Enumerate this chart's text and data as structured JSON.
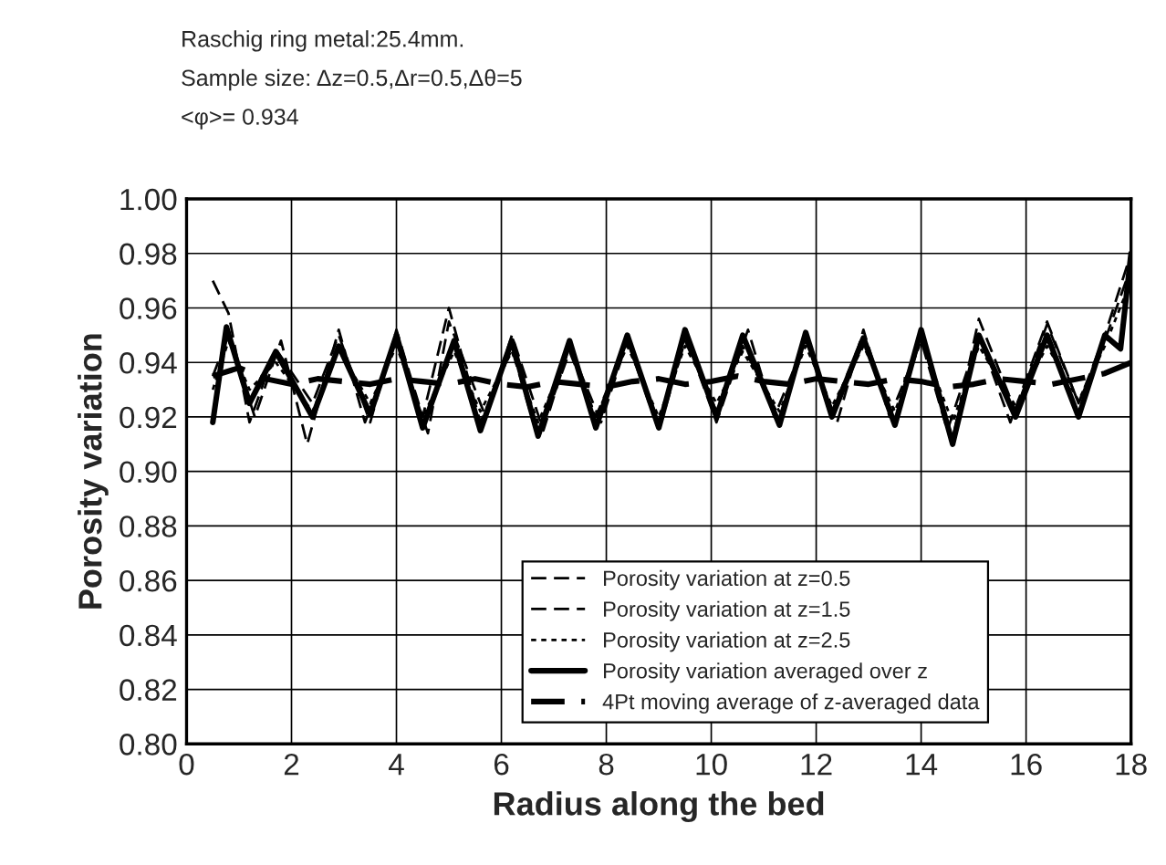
{
  "chart_data": {
    "type": "line",
    "title": "Raschig ring metal:25.4mm.",
    "subtitle": "Sample size: Δz=0.5,Δr=0.5,Δθ=5",
    "annotations": [
      "<φ>= 0.934"
    ],
    "xlabel": "Radius along the bed",
    "ylabel": "Porosity variation",
    "xlim": [
      0,
      18
    ],
    "xticks": [
      0,
      2,
      4,
      6,
      8,
      10,
      12,
      14,
      16,
      18
    ],
    "ylim": [
      0.8,
      1.0
    ],
    "yticks": [
      {
        "value": 0.8,
        "label": "0.80"
      },
      {
        "value": 0.82,
        "label": "0.82"
      },
      {
        "value": 0.84,
        "label": "0.84"
      },
      {
        "value": 0.86,
        "label": "0.86"
      },
      {
        "value": 0.88,
        "label": "0.88"
      },
      {
        "value": 0.9,
        "label": "0.90"
      },
      {
        "value": 0.92,
        "label": "0.92"
      },
      {
        "value": 0.94,
        "label": "0.94"
      },
      {
        "value": 0.96,
        "label": "0.96"
      },
      {
        "value": 0.98,
        "label": "0.98"
      },
      {
        "value": 1.0,
        "label": "1.00"
      }
    ],
    "grid": true,
    "legend": "bottom right",
    "marker": "none",
    "series": [
      {
        "name": "Porosity variation at z=0.5",
        "color": "#000000",
        "line_style": "dashed",
        "x": [
          0.5,
          0.8,
          1.2,
          1.7,
          2.4,
          2.9,
          3.5,
          4.0,
          4.5,
          5.0,
          5.6,
          6.2,
          6.7,
          7.3,
          7.8,
          8.4,
          9.0,
          9.5,
          10.1,
          10.6,
          11.3,
          11.8,
          12.3,
          12.9,
          13.5,
          14.0,
          14.6,
          15.1,
          15.8,
          16.4,
          17.0,
          17.5,
          18.0
        ],
        "values": [
          0.97,
          0.958,
          0.918,
          0.945,
          0.925,
          0.95,
          0.918,
          0.952,
          0.92,
          0.96,
          0.918,
          0.945,
          0.912,
          0.944,
          0.92,
          0.948,
          0.915,
          0.948,
          0.922,
          0.946,
          0.92,
          0.95,
          0.922,
          0.95,
          0.918,
          0.95,
          0.912,
          0.956,
          0.922,
          0.954,
          0.925,
          0.95,
          0.98
        ]
      },
      {
        "name": "Porosity variation at z=1.5",
        "color": "#000000",
        "line_style": "dashed",
        "x": [
          0.5,
          0.8,
          1.3,
          1.8,
          2.3,
          2.9,
          3.4,
          4.0,
          4.6,
          5.0,
          5.7,
          6.2,
          6.8,
          7.3,
          7.9,
          8.4,
          9.0,
          9.5,
          10.1,
          10.7,
          11.2,
          11.8,
          12.4,
          12.9,
          13.4,
          14.0,
          14.5,
          15.1,
          15.7,
          16.4,
          17.0,
          17.5,
          18.0
        ],
        "values": [
          0.935,
          0.95,
          0.92,
          0.948,
          0.91,
          0.952,
          0.918,
          0.948,
          0.914,
          0.955,
          0.92,
          0.95,
          0.915,
          0.946,
          0.918,
          0.948,
          0.918,
          0.95,
          0.918,
          0.952,
          0.92,
          0.948,
          0.918,
          0.952,
          0.92,
          0.948,
          0.915,
          0.95,
          0.918,
          0.955,
          0.925,
          0.948,
          0.975
        ]
      },
      {
        "name": "Porosity variation at z=2.5",
        "color": "#000000",
        "line_style": "dotted",
        "x": [
          0.5,
          0.8,
          1.2,
          1.7,
          2.4,
          2.9,
          3.5,
          4.0,
          4.5,
          5.1,
          5.6,
          6.2,
          6.7,
          7.3,
          7.8,
          8.4,
          9.0,
          9.5,
          10.1,
          10.6,
          11.3,
          11.8,
          12.3,
          12.9,
          13.5,
          14.0,
          14.6,
          15.1,
          15.8,
          16.4,
          17.0,
          17.5,
          18.0
        ],
        "values": [
          0.93,
          0.948,
          0.93,
          0.94,
          0.922,
          0.945,
          0.925,
          0.946,
          0.92,
          0.944,
          0.922,
          0.944,
          0.918,
          0.945,
          0.92,
          0.946,
          0.92,
          0.946,
          0.925,
          0.944,
          0.922,
          0.946,
          0.924,
          0.946,
          0.922,
          0.948,
          0.918,
          0.946,
          0.924,
          0.946,
          0.926,
          0.946,
          0.97
        ]
      },
      {
        "name": "Porosity variation averaged over z",
        "color": "#000000",
        "line_style": "solid",
        "x": [
          0.5,
          0.76,
          1.2,
          1.7,
          2.4,
          2.9,
          3.5,
          4.0,
          4.5,
          5.1,
          5.6,
          6.2,
          6.7,
          7.3,
          7.8,
          8.4,
          9.0,
          9.5,
          10.1,
          10.6,
          11.3,
          11.8,
          12.3,
          12.9,
          13.5,
          14.0,
          14.6,
          15.1,
          15.8,
          16.4,
          17.0,
          17.5,
          17.8,
          18.0
        ],
        "values": [
          0.918,
          0.953,
          0.925,
          0.944,
          0.92,
          0.946,
          0.921,
          0.95,
          0.916,
          0.948,
          0.915,
          0.948,
          0.913,
          0.948,
          0.916,
          0.95,
          0.916,
          0.952,
          0.92,
          0.95,
          0.917,
          0.951,
          0.92,
          0.949,
          0.917,
          0.952,
          0.91,
          0.95,
          0.92,
          0.95,
          0.92,
          0.95,
          0.945,
          0.98
        ]
      },
      {
        "name": "4Pt moving average of z-averaged data",
        "color": "#000000",
        "line_style": "dashed",
        "x": [
          0.5,
          1.0,
          1.5,
          2.0,
          2.5,
          3.0,
          3.5,
          4.0,
          4.5,
          5.0,
          5.5,
          6.0,
          6.5,
          7.0,
          7.5,
          8.0,
          8.5,
          9.0,
          9.5,
          10.0,
          10.5,
          11.0,
          11.5,
          12.0,
          12.5,
          13.0,
          13.5,
          14.0,
          14.5,
          15.0,
          15.5,
          16.0,
          16.5,
          17.0,
          17.5,
          18.0
        ],
        "values": [
          0.935,
          0.938,
          0.934,
          0.932,
          0.934,
          0.933,
          0.932,
          0.934,
          0.933,
          0.932,
          0.934,
          0.932,
          0.931,
          0.933,
          0.932,
          0.931,
          0.933,
          0.934,
          0.932,
          0.933,
          0.935,
          0.933,
          0.932,
          0.934,
          0.933,
          0.932,
          0.934,
          0.933,
          0.931,
          0.932,
          0.934,
          0.933,
          0.932,
          0.934,
          0.936,
          0.94
        ]
      }
    ]
  }
}
